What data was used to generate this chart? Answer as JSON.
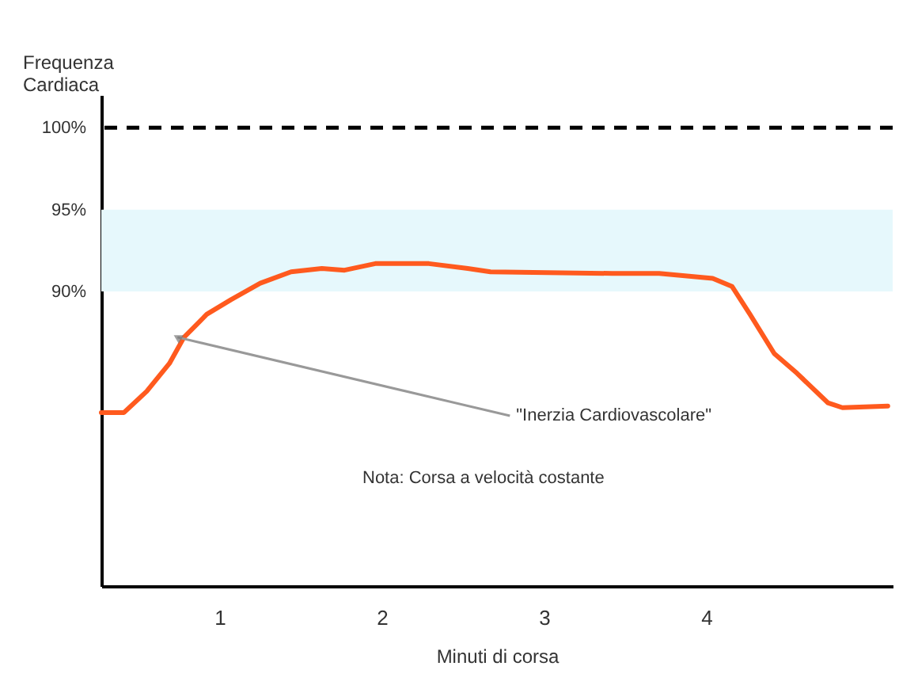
{
  "chart_data": {
    "type": "line",
    "ylabel": "Frequenza\nCardiaca",
    "xlabel": "Minuti di corsa",
    "x": [
      0.27,
      0.41,
      0.55,
      0.69,
      0.78,
      0.92,
      1.07,
      1.25,
      1.44,
      1.63,
      1.77,
      1.96,
      2.29,
      2.53,
      2.67,
      3.42,
      3.71,
      4.04,
      4.16,
      4.27,
      4.42,
      4.56,
      4.75,
      4.84,
      5.12
    ],
    "series": [
      {
        "color": "#ff5a1e",
        "values": [
          82.6,
          82.6,
          83.9,
          85.6,
          87.2,
          88.6,
          89.5,
          90.5,
          91.2,
          91.4,
          91.3,
          91.7,
          91.7,
          91.4,
          91.2,
          91.1,
          91.1,
          90.8,
          90.3,
          88.6,
          86.2,
          85.0,
          83.2,
          82.9,
          83.0
        ]
      }
    ],
    "xlim": [
      0.27,
      5.15
    ],
    "xticks": [
      1,
      2,
      3,
      4
    ],
    "ylim": [
      72,
      102
    ],
    "yticks": [
      {
        "value": 90,
        "label": "90%"
      },
      {
        "value": 95,
        "label": "95%"
      },
      {
        "value": 100,
        "label": "100%"
      }
    ],
    "ref_lines": [
      {
        "axis": "y",
        "value": 100,
        "color": "#000000",
        "line_style": "dashed"
      }
    ],
    "bands": [
      {
        "axis": "y",
        "from": 90,
        "to": 95,
        "color": "#e6f8fc"
      }
    ],
    "annotations": [
      {
        "text": "\"Inerzia Cardiovascolare\"",
        "x": 0.74,
        "y": 87.2
      },
      "Nota: Corsa a velocità costante"
    ],
    "grid": false,
    "marker": "none",
    "line_style": "solid"
  }
}
